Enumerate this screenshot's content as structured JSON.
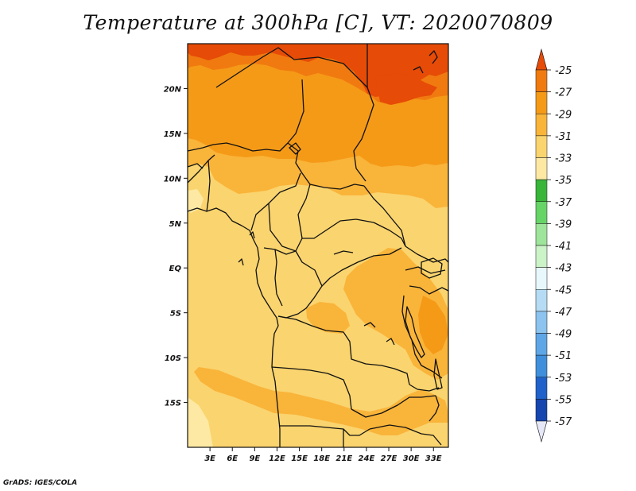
{
  "title": "Temperature at 300hPa [C], VT: 2020070809",
  "credit": "GrADS: IGES/COLA",
  "map": {
    "variable": "Temperature",
    "level": "300hPa",
    "units": "C",
    "valid_time": "2020070809",
    "lon_range": [
      0,
      35
    ],
    "lat_range": [
      -20,
      25
    ],
    "lon_ticks": [
      {
        "value": 3,
        "label": "3E"
      },
      {
        "value": 6,
        "label": "6E"
      },
      {
        "value": 9,
        "label": "9E"
      },
      {
        "value": 12,
        "label": "12E"
      },
      {
        "value": 15,
        "label": "15E"
      },
      {
        "value": 18,
        "label": "18E"
      },
      {
        "value": 21,
        "label": "21E"
      },
      {
        "value": 24,
        "label": "24E"
      },
      {
        "value": 27,
        "label": "27E"
      },
      {
        "value": 30,
        "label": "30E"
      },
      {
        "value": 33,
        "label": "33E"
      }
    ],
    "lat_ticks": [
      {
        "value": 20,
        "label": "20N"
      },
      {
        "value": 15,
        "label": "15N"
      },
      {
        "value": 10,
        "label": "10N"
      },
      {
        "value": 5,
        "label": "5N"
      },
      {
        "value": 0,
        "label": "EQ"
      },
      {
        "value": -5,
        "label": "5S"
      },
      {
        "value": -10,
        "label": "10S"
      },
      {
        "value": -15,
        "label": "15S"
      }
    ]
  },
  "colorbar": {
    "labels": [
      "-25",
      "-27",
      "-29",
      "-31",
      "-33",
      "-35",
      "-37",
      "-39",
      "-41",
      "-43",
      "-45",
      "-47",
      "-49",
      "-51",
      "-53",
      "-55",
      "-57"
    ],
    "colors": [
      "#e64b07",
      "#f07a10",
      "#f59a17",
      "#f9b43a",
      "#fad46e",
      "#fde9a3",
      "#39b53a",
      "#66d466",
      "#9ee49a",
      "#ccf2c8",
      "#e8f7fc",
      "#b5dcf4",
      "#8cc3ef",
      "#5ea6e6",
      "#3f8fdc",
      "#2062ca",
      "#1546b0",
      "#0c2a93",
      "#081868"
    ]
  },
  "legend_colors": {
    "c25": "#e64b07",
    "c27": "#f07a10",
    "c29": "#f59a17",
    "c31": "#f9b43a",
    "c33": "#fad46e",
    "c35": "#fde9a3"
  }
}
